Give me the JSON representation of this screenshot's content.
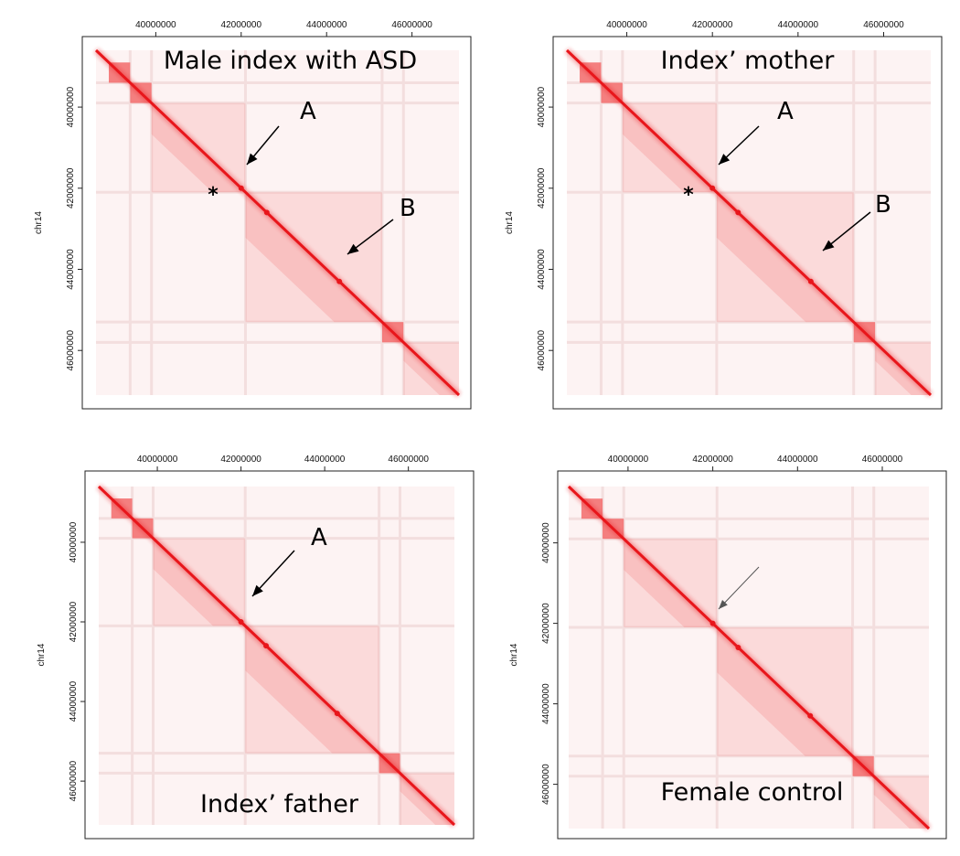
{
  "chart_data": [
    {
      "type": "heatmap",
      "panel": "top-left",
      "title": "Male index with ASD",
      "ylabel": "chr14",
      "xticks": [
        40000000,
        42000000,
        44000000,
        46000000
      ],
      "yticks": [
        40000000,
        42000000,
        44000000,
        46000000
      ],
      "xlim": [
        38600000,
        47100000
      ],
      "ylim": [
        38600000,
        47100000
      ],
      "tads": [
        [
          38900000,
          39400000
        ],
        [
          39400000,
          39900000
        ],
        [
          39900000,
          42100000
        ],
        [
          42100000,
          45300000
        ],
        [
          45300000,
          45800000
        ],
        [
          45800000,
          47100000
        ]
      ],
      "annotations": [
        {
          "label": "A",
          "pos": 42000000
        },
        {
          "label": "B",
          "pos": 44300000
        }
      ],
      "marker": "*",
      "marker_pos": 42000000
    },
    {
      "type": "heatmap",
      "panel": "top-right",
      "title": "Index’ mother",
      "ylabel": "chr14",
      "xticks": [
        40000000,
        42000000,
        44000000,
        46000000
      ],
      "yticks": [
        40000000,
        42000000,
        44000000,
        46000000
      ],
      "xlim": [
        38600000,
        47100000
      ],
      "ylim": [
        38600000,
        47100000
      ],
      "tads": [
        [
          38900000,
          39400000
        ],
        [
          39400000,
          39900000
        ],
        [
          39900000,
          42100000
        ],
        [
          42100000,
          45300000
        ],
        [
          45300000,
          45800000
        ],
        [
          45800000,
          47100000
        ]
      ],
      "annotations": [
        {
          "label": "A",
          "pos": 42000000
        },
        {
          "label": "B",
          "pos": 44300000
        }
      ],
      "marker": "*",
      "marker_pos": 42000000
    },
    {
      "type": "heatmap",
      "panel": "bottom-left",
      "title": "Index’ father",
      "ylabel": "chr14",
      "xticks": [
        40000000,
        42000000,
        44000000,
        46000000
      ],
      "yticks": [
        40000000,
        42000000,
        44000000,
        46000000
      ],
      "xlim": [
        38600000,
        47100000
      ],
      "ylim": [
        38600000,
        47100000
      ],
      "tads": [
        [
          38900000,
          39400000
        ],
        [
          39400000,
          39900000
        ],
        [
          39900000,
          42100000
        ],
        [
          42100000,
          45300000
        ],
        [
          45300000,
          45800000
        ],
        [
          45800000,
          47100000
        ]
      ],
      "annotations": [
        {
          "label": "A",
          "pos": 42000000
        }
      ]
    },
    {
      "type": "heatmap",
      "panel": "bottom-right",
      "title": "Female control",
      "ylabel": "chr14",
      "xticks": [
        40000000,
        42000000,
        44000000,
        46000000
      ],
      "yticks": [
        40000000,
        42000000,
        44000000,
        46000000
      ],
      "xlim": [
        38600000,
        47100000
      ],
      "ylim": [
        38600000,
        47100000
      ],
      "tads": [
        [
          38900000,
          39400000
        ],
        [
          39400000,
          39900000
        ],
        [
          39900000,
          42100000
        ],
        [
          42100000,
          45300000
        ],
        [
          45300000,
          45800000
        ],
        [
          45800000,
          47100000
        ]
      ],
      "annotations": [
        {
          "label": "",
          "pos": 42000000
        }
      ]
    }
  ],
  "colors": {
    "diagonal": "#e8161b",
    "tad": "#f26a6a",
    "background": "#fdf3f3",
    "frame": "#222222"
  }
}
